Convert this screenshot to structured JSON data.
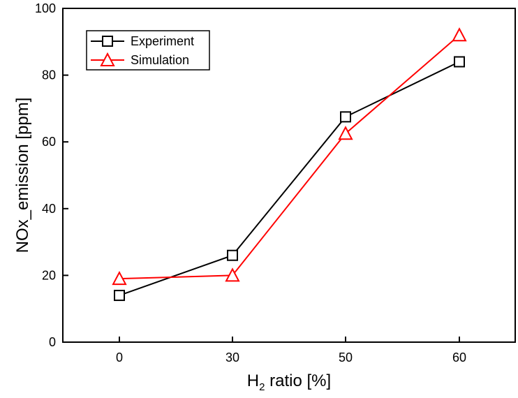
{
  "chart_data": {
    "type": "line",
    "title": "",
    "xlabel": {
      "main": "H",
      "subscript": "2",
      "rest": " ratio [%]"
    },
    "ylabel": "NOx_emission [ppm]",
    "categories": [
      "0",
      "30",
      "50",
      "60"
    ],
    "ylim": [
      0,
      100
    ],
    "yticks": [
      0,
      20,
      40,
      60,
      80,
      100
    ],
    "grid": false,
    "legend_position": "top-left",
    "series": [
      {
        "name": "Experiment",
        "color": "#000000",
        "marker": "square",
        "values": [
          14,
          26,
          67.5,
          84
        ]
      },
      {
        "name": "Simulation",
        "color": "#ff0000",
        "marker": "triangle",
        "values": [
          19,
          20,
          62.5,
          92
        ]
      }
    ]
  }
}
